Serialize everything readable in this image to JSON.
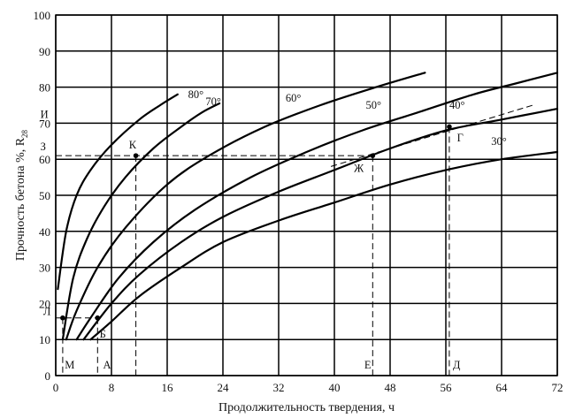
{
  "chart_data": {
    "type": "line",
    "xlabel": "Продолжительность твердения, ч",
    "ylabel": "Прочность бетона %, R",
    "ylabel_sub": "28",
    "xlim": [
      0,
      72
    ],
    "ylim": [
      0,
      100
    ],
    "x_ticks": [
      0,
      8,
      16,
      24,
      32,
      40,
      48,
      56,
      64,
      72
    ],
    "y_ticks": [
      0,
      10,
      20,
      30,
      40,
      50,
      60,
      70,
      80,
      90,
      100
    ],
    "grid": true,
    "series": [
      {
        "name": "80°",
        "label_at": [
          19,
          77
        ],
        "points": [
          [
            0.3,
            24
          ],
          [
            1.5,
            40
          ],
          [
            3,
            50
          ],
          [
            5,
            57
          ],
          [
            8,
            64
          ],
          [
            12,
            71
          ],
          [
            15,
            75
          ],
          [
            17.5,
            78
          ]
        ]
      },
      {
        "name": "70°",
        "label_at": [
          21.5,
          75
        ],
        "points": [
          [
            1,
            10
          ],
          [
            2.5,
            27
          ],
          [
            4.5,
            38
          ],
          [
            7,
            47
          ],
          [
            10,
            55
          ],
          [
            14,
            63
          ],
          [
            18,
            69
          ],
          [
            21,
            73
          ],
          [
            23.5,
            75.5
          ]
        ]
      },
      {
        "name": "60°",
        "label_at": [
          33,
          76
        ],
        "points": [
          [
            1.5,
            10
          ],
          [
            3,
            18
          ],
          [
            6,
            30
          ],
          [
            10,
            41
          ],
          [
            16,
            53
          ],
          [
            22,
            61
          ],
          [
            30,
            69
          ],
          [
            38,
            75
          ],
          [
            46,
            80
          ],
          [
            53,
            84
          ]
        ]
      },
      {
        "name": "50°",
        "label_at": [
          44.5,
          74
        ],
        "points": [
          [
            3,
            10
          ],
          [
            5,
            16
          ],
          [
            9,
            27
          ],
          [
            14,
            37
          ],
          [
            20,
            46
          ],
          [
            28,
            55
          ],
          [
            36,
            62
          ],
          [
            44,
            68
          ],
          [
            52,
            73
          ],
          [
            60,
            78
          ],
          [
            66,
            81
          ],
          [
            72,
            84
          ]
        ]
      },
      {
        "name": "40°",
        "label_at": [
          56.5,
          74
        ],
        "points": [
          [
            4,
            10
          ],
          [
            8,
            20
          ],
          [
            12,
            28
          ],
          [
            18,
            37
          ],
          [
            24,
            44
          ],
          [
            32,
            51
          ],
          [
            40,
            57
          ],
          [
            48,
            63
          ],
          [
            56,
            68
          ],
          [
            64,
            71
          ],
          [
            72,
            74
          ]
        ]
      },
      {
        "name": "30°",
        "label_at": [
          62.5,
          64
        ],
        "points": [
          [
            5,
            10
          ],
          [
            8,
            15
          ],
          [
            12,
            22
          ],
          [
            18,
            30
          ],
          [
            24,
            37
          ],
          [
            32,
            43
          ],
          [
            40,
            48
          ],
          [
            48,
            53
          ],
          [
            56,
            57
          ],
          [
            64,
            60
          ],
          [
            72,
            62
          ]
        ]
      }
    ],
    "guides": [
      {
        "points": [
          [
            0,
            61
          ],
          [
            44.5,
            61
          ]
        ]
      },
      {
        "points": [
          [
            11.5,
            61
          ],
          [
            11.5,
            0
          ]
        ]
      },
      {
        "points": [
          [
            45.5,
            61
          ],
          [
            45.5,
            0
          ]
        ]
      },
      {
        "points": [
          [
            56.5,
            69
          ],
          [
            56.5,
            0
          ]
        ]
      },
      {
        "points": [
          [
            0,
            16
          ],
          [
            6,
            16
          ]
        ]
      },
      {
        "points": [
          [
            6,
            16
          ],
          [
            6,
            0
          ]
        ]
      },
      {
        "points": [
          [
            1,
            16
          ],
          [
            1,
            0
          ]
        ]
      },
      {
        "points": [
          [
            39.5,
            58
          ],
          [
            68.5,
            75
          ]
        ]
      }
    ],
    "points": [
      {
        "label": "К",
        "at": [
          11.5,
          61
        ],
        "label_at": [
          10.5,
          63
        ]
      },
      {
        "label": "Ж",
        "at": [
          45.5,
          61
        ],
        "label_at": [
          42.8,
          56.5
        ]
      },
      {
        "label": "Г",
        "at": [
          56.5,
          69
        ],
        "label_at": [
          57.6,
          65
        ]
      },
      {
        "label": "Б",
        "at": [
          6,
          16
        ],
        "label_at": [
          6.3,
          10.5
        ]
      },
      {
        "label": "Л",
        "at": [
          1,
          16
        ],
        "label_at": [
          -1.8,
          16.8
        ]
      }
    ],
    "annotations": [
      {
        "text": "И",
        "at": [
          -2.2,
          71.5
        ]
      },
      {
        "text": "З",
        "at": [
          -2.2,
          62.5
        ]
      },
      {
        "text": "М",
        "at": [
          1.3,
          2
        ]
      },
      {
        "text": "А",
        "at": [
          6.8,
          2
        ]
      },
      {
        "text": "Е",
        "at": [
          44.3,
          2
        ]
      },
      {
        "text": "Д",
        "at": [
          57,
          2
        ]
      }
    ]
  }
}
